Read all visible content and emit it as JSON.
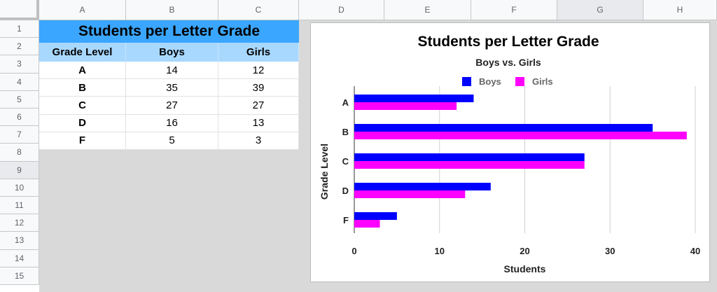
{
  "columns": [
    "A",
    "B",
    "C",
    "D",
    "E",
    "F",
    "G",
    "H"
  ],
  "rows": [
    "1",
    "2",
    "3",
    "4",
    "5",
    "6",
    "7",
    "8",
    "9",
    "10",
    "11",
    "12",
    "13",
    "14",
    "15"
  ],
  "table": {
    "title": "Students per Letter Grade",
    "headers": [
      "Grade Level",
      "Boys",
      "Girls"
    ],
    "rows": [
      [
        "A",
        "14",
        "12"
      ],
      [
        "B",
        "35",
        "39"
      ],
      [
        "C",
        "27",
        "27"
      ],
      [
        "D",
        "16",
        "13"
      ],
      [
        "F",
        "5",
        "3"
      ]
    ]
  },
  "colors": {
    "title_fill": "#3aa6ff",
    "header_fill": "#a9d8ff",
    "boys": "#0000ff",
    "girls": "#ff00ff"
  },
  "chart_data": {
    "type": "bar",
    "orientation": "horizontal",
    "title": "Students per Letter Grade",
    "subtitle": "Boys vs. Girls",
    "xlabel": "Students",
    "ylabel": "Grade Level",
    "categories": [
      "A",
      "B",
      "C",
      "D",
      "F"
    ],
    "series": [
      {
        "name": "Boys",
        "values": [
          14,
          35,
          27,
          16,
          5
        ],
        "color": "#0000ff"
      },
      {
        "name": "Girls",
        "values": [
          12,
          39,
          27,
          13,
          3
        ],
        "color": "#ff00ff"
      }
    ],
    "xlim": [
      0,
      40
    ],
    "xticks": [
      "0",
      "10",
      "20",
      "30",
      "40"
    ],
    "grid": true,
    "legend": "top"
  }
}
